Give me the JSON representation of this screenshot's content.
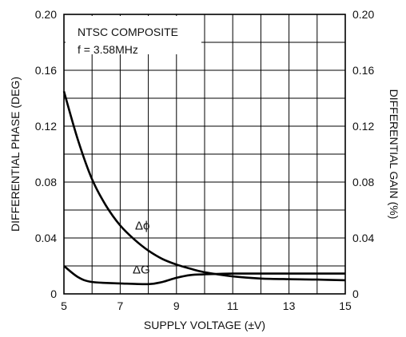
{
  "chart_data": {
    "type": "line",
    "title": "",
    "annotations": [
      "NTSC COMPOSITE",
      "f = 3.58MHz"
    ],
    "xlabel": "SUPPLY VOLTAGE (±V)",
    "ylabel_left": "DIFFERENTIAL PHASE (DEG)",
    "ylabel_right": "DIFFERENTIAL GAIN (%)",
    "xlim": [
      5,
      15
    ],
    "ylim": [
      0,
      0.2
    ],
    "x_ticks": [
      5,
      7,
      9,
      11,
      13,
      15
    ],
    "y_ticks": [
      "0",
      "0.04",
      "0.08",
      "0.12",
      "0.16",
      "0.20"
    ],
    "y_tick_values": [
      0,
      0.04,
      0.08,
      0.12,
      0.16,
      0.2
    ],
    "grid": true,
    "series": [
      {
        "name": "Δϕ",
        "axis": "left",
        "x": [
          5,
          5.5,
          6,
          6.5,
          7,
          7.5,
          8,
          8.5,
          9,
          9.5,
          10,
          11,
          12,
          13,
          14,
          15
        ],
        "y": [
          0.145,
          0.11,
          0.082,
          0.063,
          0.049,
          0.039,
          0.031,
          0.025,
          0.021,
          0.018,
          0.0155,
          0.0125,
          0.011,
          0.0105,
          0.0102,
          0.0098
        ]
      },
      {
        "name": "ΔG",
        "axis": "right",
        "x": [
          5,
          5.5,
          6,
          7,
          8,
          8.5,
          9,
          9.5,
          10,
          11,
          12,
          13,
          14,
          15
        ],
        "y": [
          0.02,
          0.012,
          0.0085,
          0.0075,
          0.007,
          0.0085,
          0.0115,
          0.0135,
          0.014,
          0.0145,
          0.0145,
          0.0145,
          0.0145,
          0.0145
        ]
      }
    ]
  }
}
